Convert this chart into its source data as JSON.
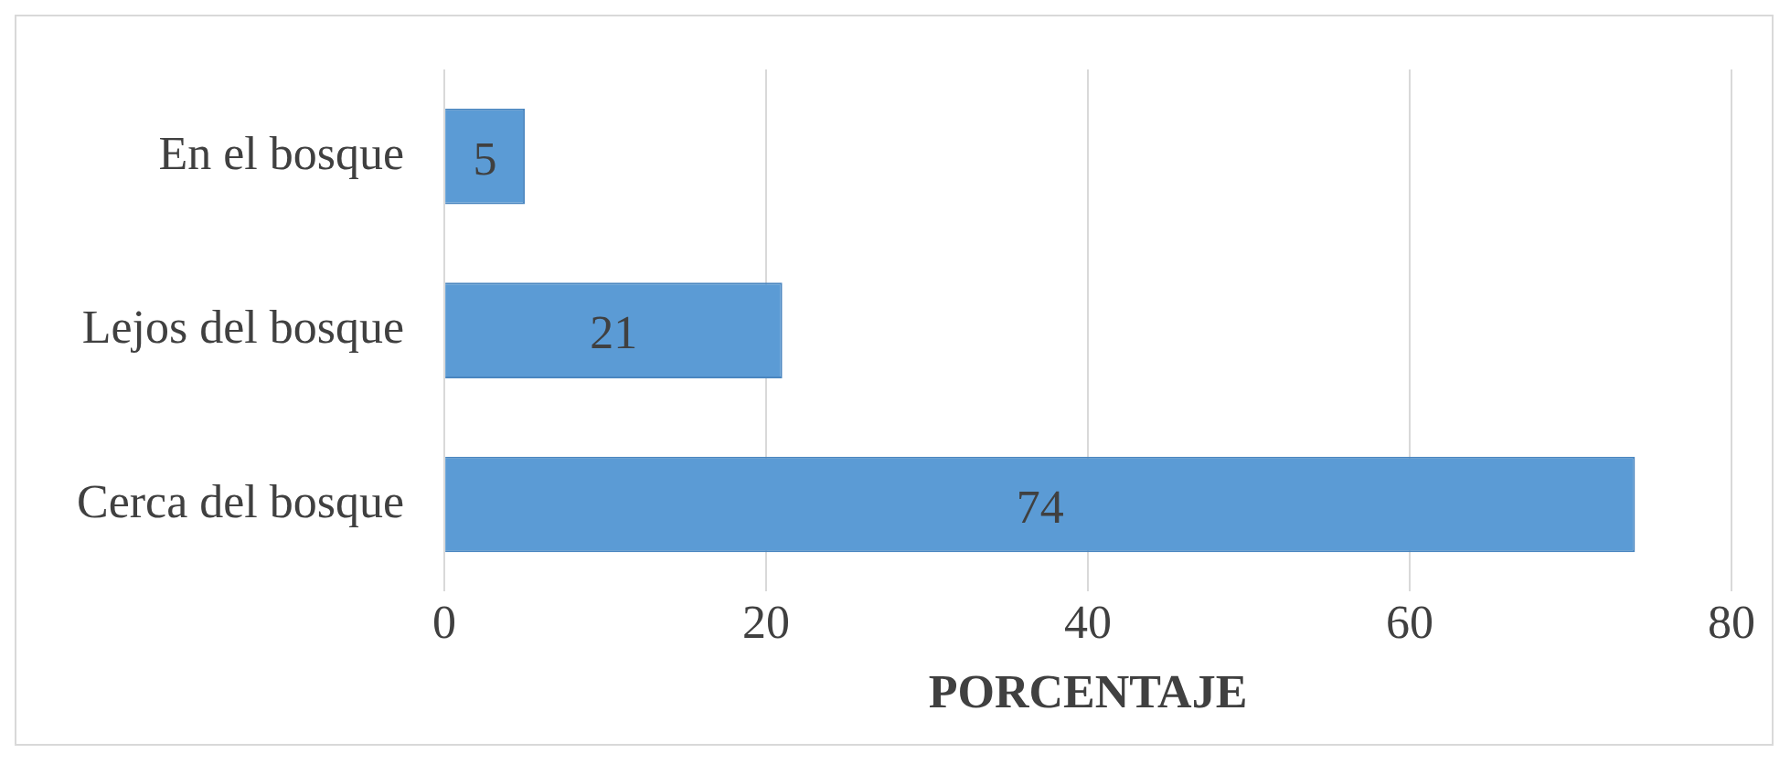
{
  "chart_data": {
    "type": "bar",
    "orientation": "horizontal",
    "xlabel": "PORCENTAJE",
    "categories": [
      "En el bosque",
      "Lejos del bosque",
      "Cerca del bosque"
    ],
    "values": [
      5,
      21,
      74
    ],
    "color": "#5b9bd5",
    "xlim": [
      0,
      80
    ],
    "xticks": [
      0,
      20,
      40,
      60,
      80
    ],
    "grid": "x",
    "legend": false,
    "data_labels": true
  }
}
